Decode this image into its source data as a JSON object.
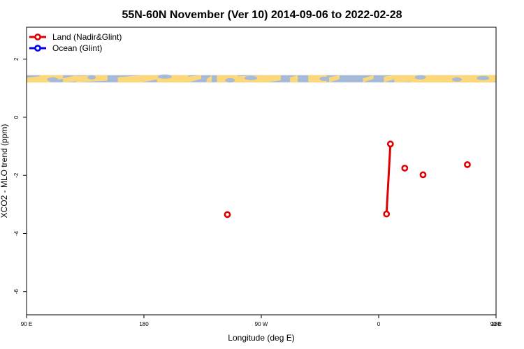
{
  "chart_data": {
    "type": "scatter",
    "title": "55N-60N November (Ver 10)   2014-09-06 to 2022-02-28",
    "xlabel": "Longitude (deg E)",
    "ylabel": "XCO2 - MLO trend (ppm)",
    "xlim": [
      90,
      450
    ],
    "ylim": [
      -6.8,
      3.1
    ],
    "x_ticks": [
      {
        "value": 90,
        "label": "90 E"
      },
      {
        "value": 180,
        "label": "180"
      },
      {
        "value": 270,
        "label": "90 W"
      },
      {
        "value": 360,
        "label": "0"
      },
      {
        "value": 450,
        "label": "90 E"
      },
      {
        "value": 540,
        "label": "180"
      }
    ],
    "y_ticks": [
      {
        "value": 2,
        "label": "2"
      },
      {
        "value": 0,
        "label": "0"
      },
      {
        "value": -2,
        "label": "-2"
      },
      {
        "value": -4,
        "label": "-4"
      },
      {
        "value": -6,
        "label": "-6"
      }
    ],
    "legend_position": "top-left",
    "series": [
      {
        "name": "Land (Nadir&Glint)",
        "color": "#e00000",
        "points": [
          {
            "x": 244,
            "y": -3.35
          },
          {
            "x": 366,
            "y": -3.33
          },
          {
            "x": 369,
            "y": -0.92
          },
          {
            "x": 380,
            "y": -1.75
          },
          {
            "x": 394,
            "y": -1.98
          },
          {
            "x": 428,
            "y": -1.63
          }
        ],
        "line_segments": [
          [
            1,
            2
          ]
        ]
      },
      {
        "name": "Ocean (Glint)",
        "color": "#0000ee",
        "points": []
      }
    ],
    "map_strip": {
      "y_range": [
        1.2,
        1.45
      ],
      "ocean_color": "#a7bbd8",
      "land_color": "#fcd87a"
    }
  }
}
